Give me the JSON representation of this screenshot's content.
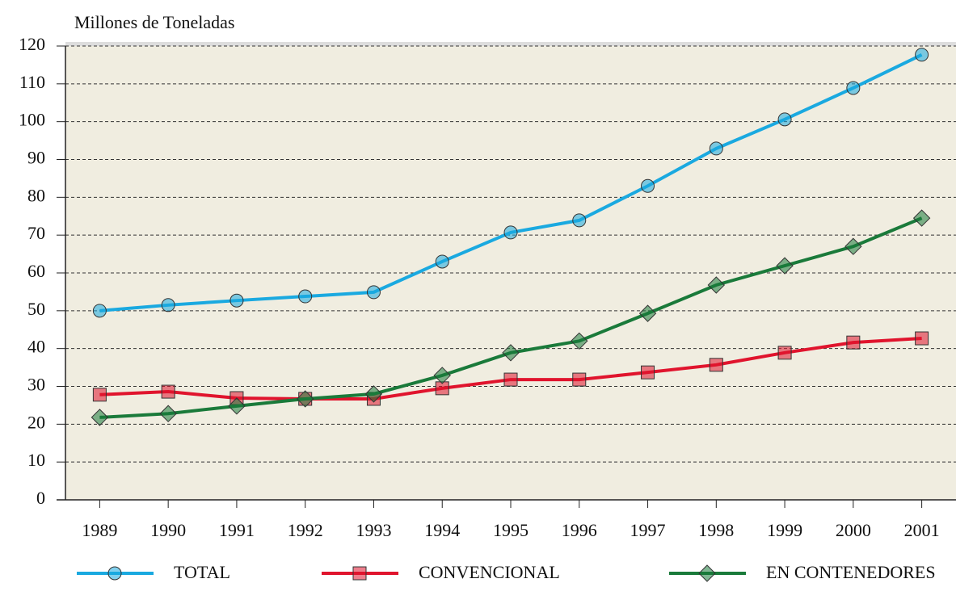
{
  "chart_data": {
    "type": "line",
    "y_axis_label": "Millones de Toneladas",
    "categories": [
      "1989",
      "1990",
      "1991",
      "1992",
      "1993",
      "1994",
      "1995",
      "1996",
      "1997",
      "1998",
      "1999",
      "2000",
      "2001"
    ],
    "series": [
      {
        "name": "TOTAL",
        "color": "#1aa9e0",
        "marker": "circle",
        "values": [
          50,
          51.5,
          52.7,
          53.8,
          54.9,
          63,
          70.7,
          73.9,
          83,
          92.9,
          100.6,
          108.9,
          117.7
        ]
      },
      {
        "name": "CONVENCIONAL",
        "color": "#e0142d",
        "marker": "square",
        "values": [
          27.8,
          28.6,
          26.9,
          26.7,
          26.7,
          29.5,
          31.8,
          31.8,
          33.7,
          35.7,
          38.9,
          41.6,
          42.7
        ]
      },
      {
        "name": "EN CONTENEDORES",
        "color": "#1a7a3a",
        "marker": "diamond",
        "values": [
          21.8,
          22.8,
          24.8,
          26.7,
          28,
          32.9,
          38.9,
          42,
          49.3,
          56.8,
          61.9,
          67,
          74.5
        ]
      }
    ],
    "ylim": [
      0,
      120
    ],
    "yticks": [
      0,
      10,
      20,
      30,
      40,
      50,
      60,
      70,
      80,
      90,
      100,
      110,
      120
    ],
    "grid": true
  }
}
